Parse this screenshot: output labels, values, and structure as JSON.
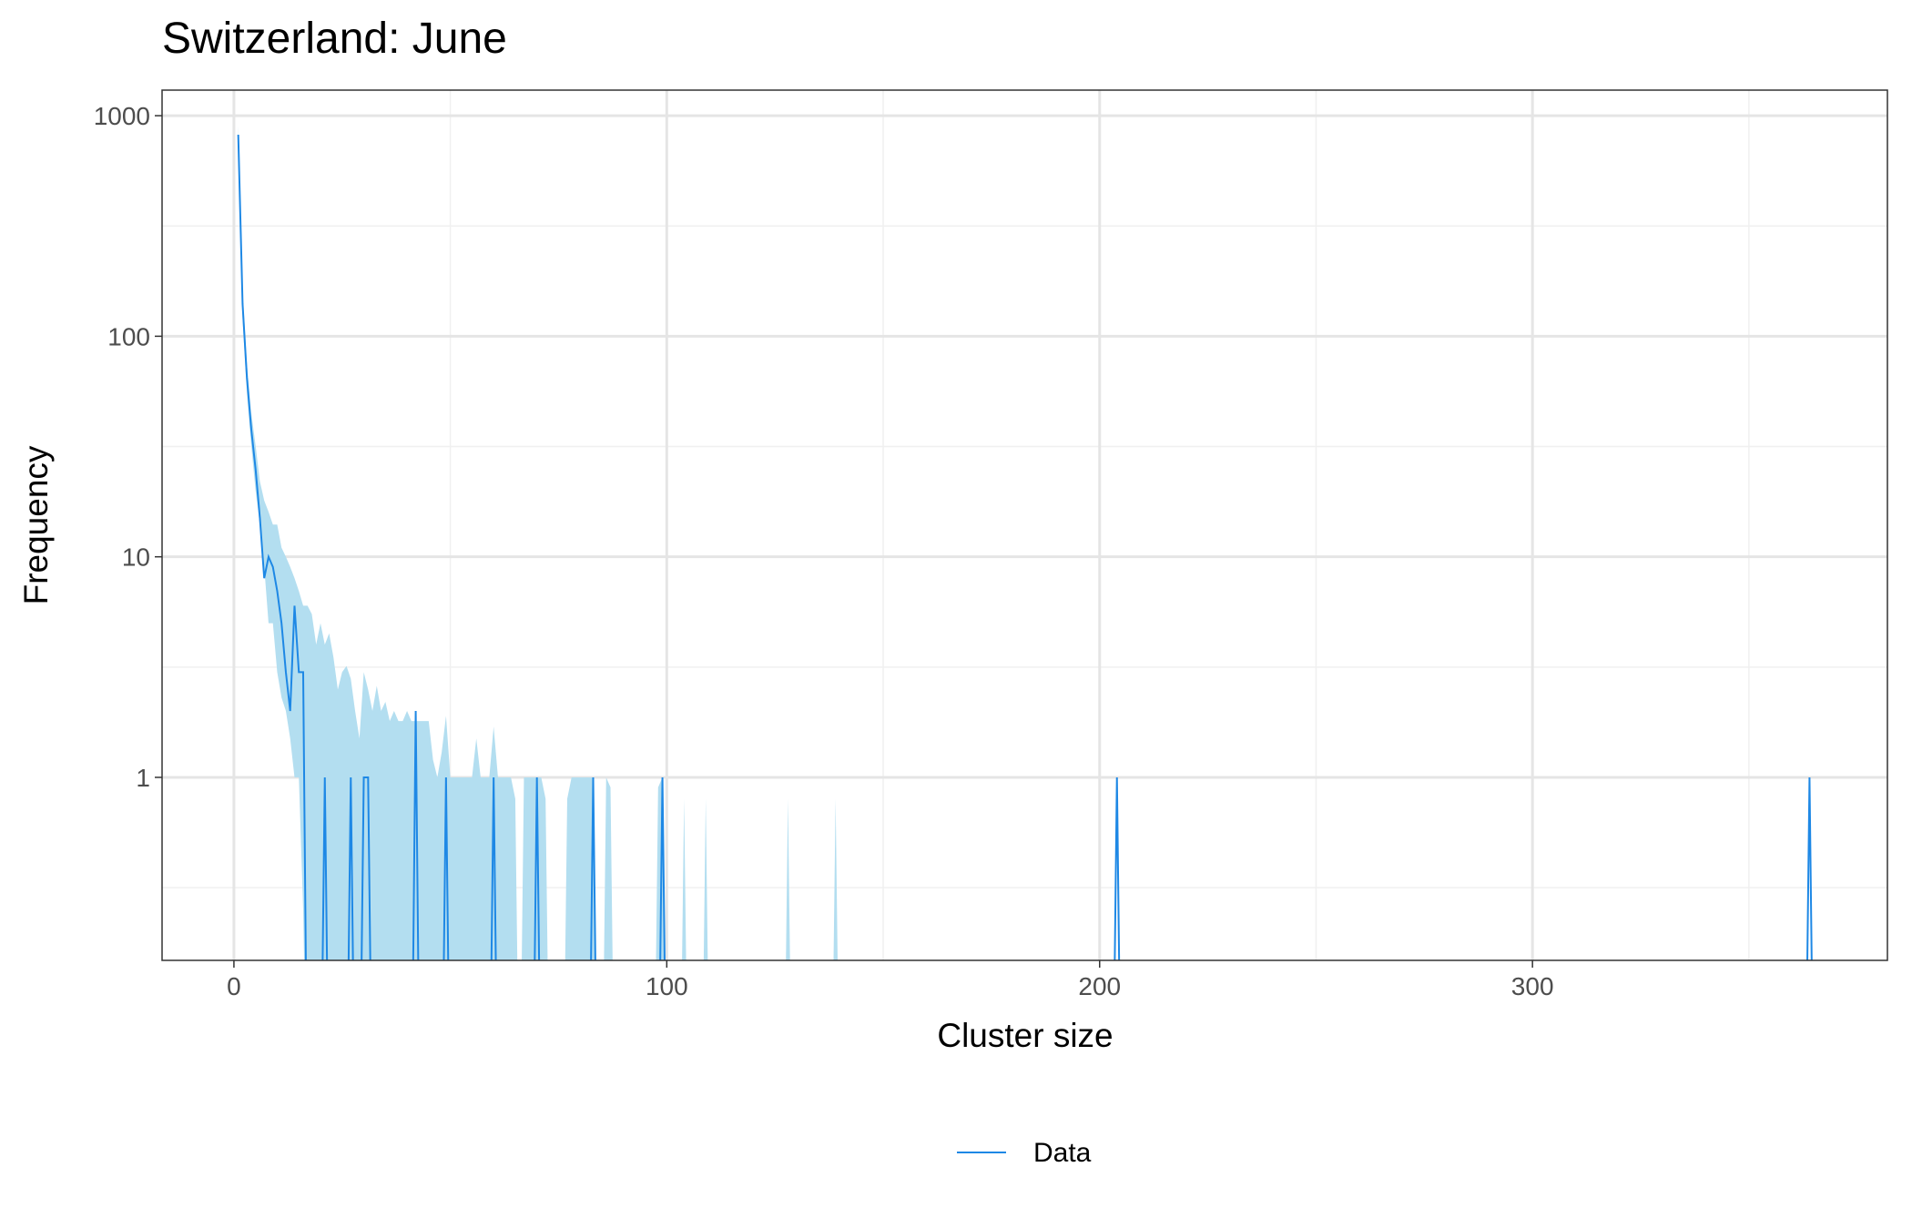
{
  "chart_data": {
    "type": "line",
    "title": "Switzerland: June",
    "xlabel": "Cluster size",
    "ylabel": "Frequency",
    "log_y": true,
    "grid": true,
    "legend": "bottom",
    "xlim": [
      -16.6,
      382
    ],
    "ylim": [
      0.148,
      1306
    ],
    "xticks": [
      0,
      100,
      200,
      300
    ],
    "yticks": [
      1,
      10,
      100,
      1000
    ],
    "x": [
      1,
      2,
      3,
      4,
      5,
      6,
      7,
      8,
      9,
      10,
      11,
      12,
      13,
      14,
      15,
      16,
      17,
      18,
      19,
      20,
      21,
      22,
      23,
      24,
      25,
      26,
      27,
      28,
      29,
      30,
      31,
      32,
      33,
      34,
      35,
      36,
      37,
      38,
      39,
      40,
      41,
      42,
      43,
      44,
      45,
      46,
      47,
      48,
      49,
      50,
      51,
      52,
      53,
      54,
      55,
      56,
      57,
      58,
      59,
      60,
      61,
      62,
      63,
      64,
      65,
      66,
      67,
      68,
      69,
      70,
      71,
      72,
      73,
      74,
      75,
      76,
      77,
      78,
      79,
      80,
      81,
      82,
      83,
      84,
      85,
      86,
      87,
      88,
      89,
      90,
      91,
      92,
      93,
      94,
      95,
      96,
      97,
      98,
      99,
      100,
      101,
      203,
      204,
      205,
      363,
      364,
      365
    ],
    "series": [
      {
        "name": "Data",
        "color": "#1e88e5",
        "values": [
          820,
          140,
          65,
          38,
          25,
          15,
          8,
          10,
          9,
          7,
          5,
          3,
          2,
          6,
          3,
          3,
          0,
          0,
          0,
          0,
          1,
          0,
          0,
          0,
          0,
          0,
          1,
          0,
          0,
          1,
          1,
          0,
          0,
          0,
          0,
          0,
          0,
          0,
          0,
          0,
          0,
          2,
          0,
          0,
          0,
          0,
          0,
          0,
          1,
          0,
          0,
          0,
          0,
          0,
          0,
          0,
          0,
          0,
          0,
          1,
          0,
          0,
          0,
          0,
          0,
          0,
          0,
          0,
          0,
          1,
          0,
          0,
          0,
          0,
          0,
          0,
          0,
          0,
          0,
          0,
          0,
          0,
          1,
          0,
          0,
          0,
          0,
          0,
          0,
          0,
          0,
          0,
          0,
          0,
          0,
          0,
          0,
          0,
          1,
          0,
          0,
          0,
          1,
          0,
          0,
          1,
          0
        ]
      }
    ],
    "ribbon": {
      "color": "#b3def0",
      "x": [
        1,
        2,
        3,
        4,
        5,
        6,
        7,
        8,
        9,
        10,
        11,
        12,
        13,
        14,
        15,
        16,
        17,
        18,
        19,
        20,
        21,
        22,
        23,
        24,
        25,
        26,
        27,
        28,
        29,
        30,
        31,
        32,
        33,
        34,
        35,
        36,
        37,
        38,
        39,
        40,
        41,
        42,
        43,
        44,
        45,
        46,
        47,
        48,
        49,
        50,
        51,
        52,
        53,
        54,
        55,
        56,
        57,
        58,
        59,
        60,
        61,
        62,
        63,
        64,
        65,
        66,
        67,
        68,
        69,
        70,
        71,
        72,
        73,
        74,
        75,
        76,
        77,
        78,
        79,
        80,
        81,
        82,
        83,
        84,
        85,
        86,
        87,
        88,
        89,
        90,
        91,
        92,
        93,
        94,
        95,
        96,
        97,
        98,
        99,
        100,
        101,
        102,
        103,
        104,
        105,
        106,
        107,
        108,
        109,
        110,
        127,
        128,
        129,
        138,
        139,
        140
      ],
      "upper": [
        900,
        160,
        75,
        45,
        32,
        22,
        18,
        16,
        14,
        14,
        11,
        10,
        9,
        8,
        7,
        6,
        6,
        5.5,
        4,
        5,
        4,
        4.5,
        3.5,
        2.5,
        3,
        3.2,
        2.8,
        2,
        1.5,
        3,
        2.5,
        2,
        2.6,
        2,
        2.2,
        1.8,
        2,
        1.8,
        1.8,
        2,
        1.8,
        1.8,
        1.8,
        1.8,
        1.8,
        1.2,
        1,
        1.3,
        1.9,
        1,
        1,
        1,
        1,
        1,
        1,
        1.5,
        1,
        1,
        1,
        1.7,
        1,
        1,
        1,
        1,
        0.8,
        0,
        1,
        1,
        1,
        1,
        1,
        0.8,
        0,
        0,
        0,
        0,
        0.8,
        1,
        1,
        1,
        1,
        1,
        1,
        0,
        0,
        1,
        0.9,
        0,
        0,
        0,
        0,
        0,
        0,
        0,
        0,
        0,
        0,
        0.9,
        1,
        0,
        0,
        0,
        0,
        0.8,
        0,
        0,
        0,
        0,
        0.8,
        0,
        0,
        0.8,
        0,
        0,
        0.8,
        0
      ],
      "lower": [
        700,
        120,
        55,
        32,
        20,
        14,
        9,
        5,
        5,
        3,
        2.3,
        2,
        1.5,
        1,
        1,
        0.25,
        0,
        0,
        0,
        0,
        0,
        0,
        0,
        0,
        0,
        0,
        0,
        0,
        0,
        0,
        0,
        0,
        0,
        0,
        0,
        0,
        0,
        0,
        0,
        0,
        0,
        0,
        0,
        0,
        0,
        0,
        0,
        0,
        0,
        0,
        0,
        0,
        0,
        0,
        0,
        0,
        0,
        0,
        0,
        0,
        0,
        0,
        0,
        0,
        0,
        0,
        0,
        0,
        0,
        0,
        0,
        0,
        0,
        0,
        0,
        0,
        0,
        0,
        0,
        0,
        0,
        0,
        0,
        0,
        0,
        0,
        0,
        0,
        0,
        0,
        0,
        0,
        0,
        0,
        0,
        0,
        0,
        0,
        0,
        0,
        0,
        0,
        0,
        0,
        0,
        0,
        0,
        0,
        0,
        0,
        0,
        0,
        0,
        0,
        0,
        0
      ]
    }
  }
}
